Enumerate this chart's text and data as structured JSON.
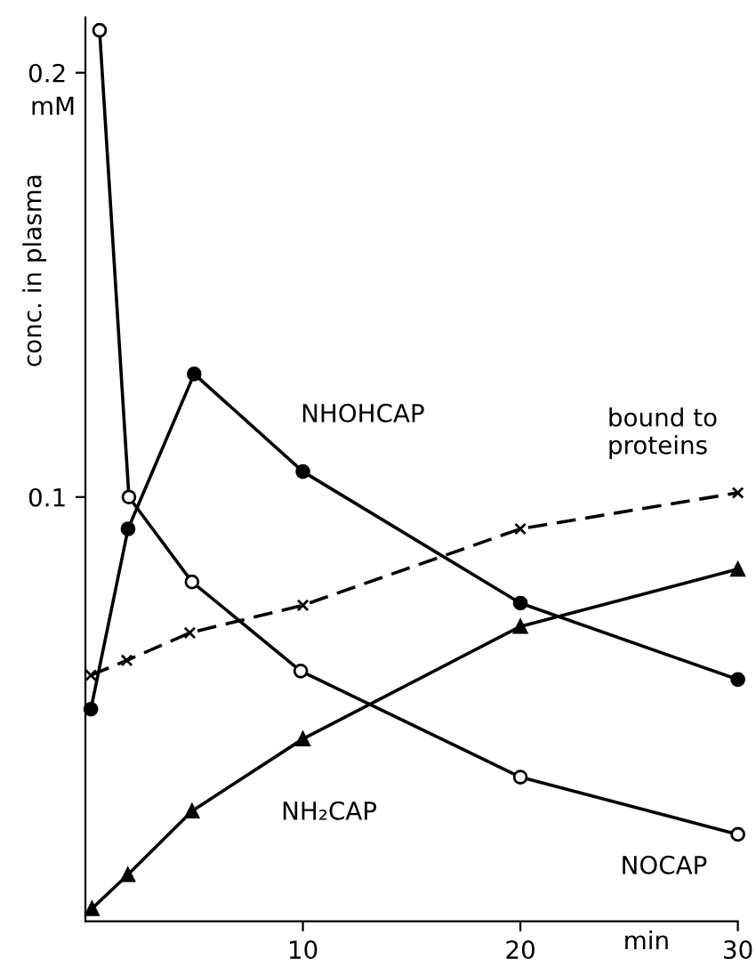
{
  "chart_data": {
    "type": "line",
    "xlabel": "min",
    "ylabel": "conc. in plasma",
    "annotations": [
      "mM"
    ],
    "xlim": [
      0,
      30
    ],
    "ylim": [
      0,
      0.213
    ],
    "xticks": [
      10,
      20,
      30
    ],
    "yticks": [
      0.1,
      0.2
    ],
    "grid": false,
    "legend": false,
    "line_style": "solid",
    "series": [
      {
        "name": "NOCAP",
        "color": "#000000",
        "marker": "circle",
        "colors": [
          "#ffffff",
          "#ffffff",
          "#ffffff",
          "#ffffff",
          "#ffffff",
          "#ffffff"
        ],
        "x": [
          0.65,
          2,
          4.9,
          9.9,
          20,
          30
        ],
        "values": [
          0.21,
          0.1,
          0.08,
          0.059,
          0.034,
          0.0205
        ]
      },
      {
        "name": "NHOHCAP",
        "color": "#000000",
        "marker": "circle",
        "x": [
          0.25,
          1.96,
          5,
          10,
          20,
          30
        ],
        "values": [
          0.05,
          0.0925,
          0.129,
          0.106,
          0.075,
          0.057
        ]
      },
      {
        "name": "bound to proteins",
        "color": "#000000",
        "marker": "cross",
        "line_style": "dashed",
        "x": [
          0.25,
          1.9,
          4.8,
          10,
          20,
          30
        ],
        "values": [
          0.058,
          0.0615,
          0.068,
          0.0745,
          0.0925,
          0.101
        ]
      },
      {
        "name": "NH₂CAP",
        "color": "#000000",
        "marker": "triangle",
        "x": [
          0.3,
          1.95,
          4.9,
          10,
          20,
          30
        ],
        "values": [
          0.003,
          0.011,
          0.026,
          0.043,
          0.0695,
          0.083
        ]
      }
    ]
  }
}
